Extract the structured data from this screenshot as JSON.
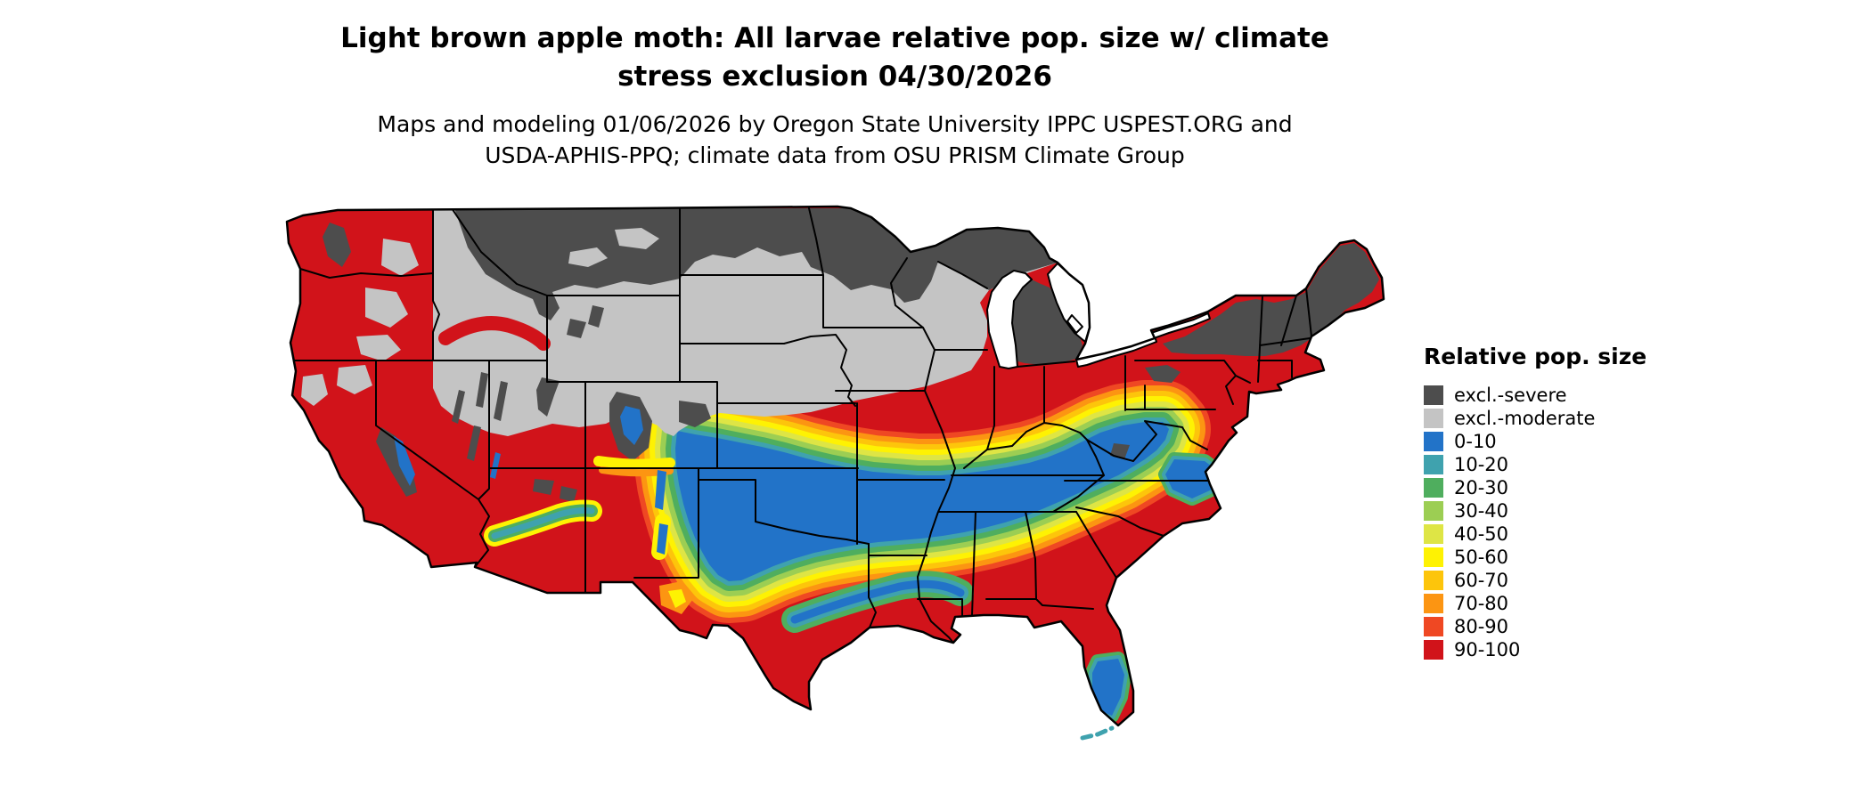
{
  "title": {
    "line1": "Light brown apple moth: All larvae relative pop. size w/ climate",
    "line2": "stress exclusion 04/30/2026"
  },
  "subtitle": {
    "line1": "Maps and modeling 01/06/2026 by Oregon State University IPPC USPEST.ORG and",
    "line2": "USDA-APHIS-PPQ; climate data from OSU PRISM Climate Group"
  },
  "map": {
    "region": "Continental United States"
  },
  "legend": {
    "title": "Relative pop. size",
    "items": [
      {
        "label": "excl.-severe",
        "color": "#4D4D4D"
      },
      {
        "label": "excl.-moderate",
        "color": "#C4C4C4"
      },
      {
        "label": "0-10",
        "color": "#2273C8"
      },
      {
        "label": "10-20",
        "color": "#3FA2AE"
      },
      {
        "label": "20-30",
        "color": "#4FAE5E"
      },
      {
        "label": "30-40",
        "color": "#9CCE53"
      },
      {
        "label": "40-50",
        "color": "#DEE545"
      },
      {
        "label": "50-60",
        "color": "#FEF203"
      },
      {
        "label": "60-70",
        "color": "#FDC50B"
      },
      {
        "label": "70-80",
        "color": "#FC9512"
      },
      {
        "label": "80-90",
        "color": "#EF4823"
      },
      {
        "label": "90-100",
        "color": "#D1131A"
      }
    ]
  }
}
